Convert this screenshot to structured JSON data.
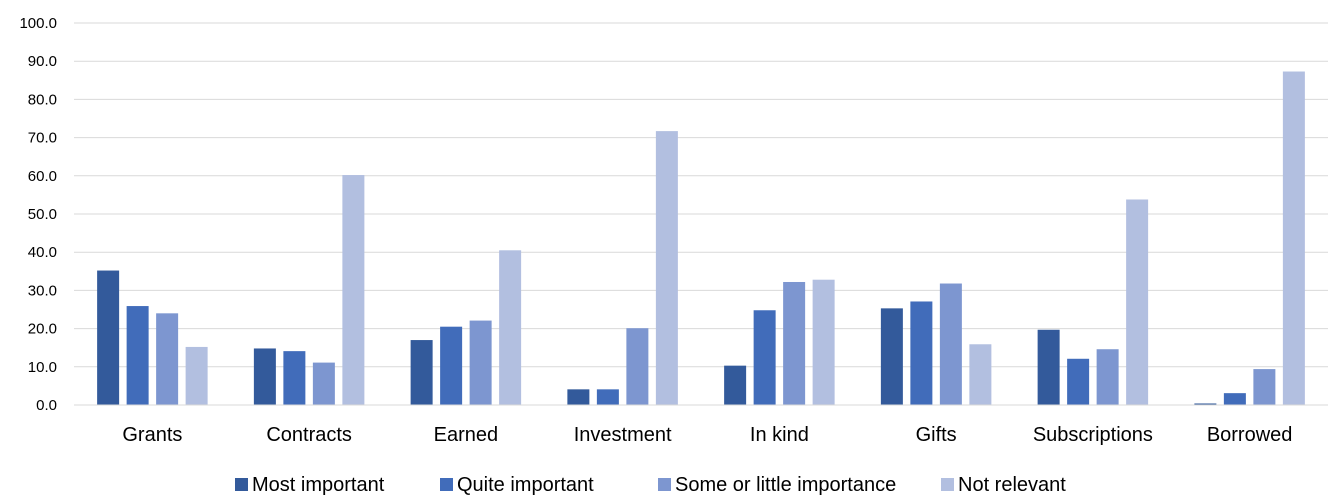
{
  "chart_data": {
    "type": "bar",
    "categories": [
      "Grants",
      "Contracts",
      "Earned",
      "Investment",
      "In kind",
      "Gifts",
      "Subscriptions",
      "Borrowed"
    ],
    "series": [
      {
        "name": "Most important",
        "color": "#335a9b",
        "values": [
          35.2,
          14.8,
          17.0,
          4.1,
          10.3,
          25.3,
          19.7,
          0.4
        ]
      },
      {
        "name": "Quite important",
        "color": "#416cba",
        "values": [
          25.9,
          14.1,
          20.5,
          4.1,
          24.8,
          27.1,
          12.1,
          3.1
        ]
      },
      {
        "name": "Some or little importance",
        "color": "#7d96d0",
        "values": [
          24.0,
          11.1,
          22.1,
          20.1,
          32.2,
          31.8,
          14.6,
          9.4
        ]
      },
      {
        "name": "Not relevant",
        "color": "#b2bfe0",
        "values": [
          15.2,
          60.2,
          40.5,
          71.7,
          32.8,
          15.9,
          53.8,
          87.3
        ]
      }
    ],
    "ylim": [
      0,
      100
    ],
    "yticks": [
      "0.0",
      "10.0",
      "20.0",
      "30.0",
      "40.0",
      "50.0",
      "60.0",
      "70.0",
      "80.0",
      "90.0",
      "100.0"
    ],
    "grid": true,
    "legend_position": "bottom"
  }
}
